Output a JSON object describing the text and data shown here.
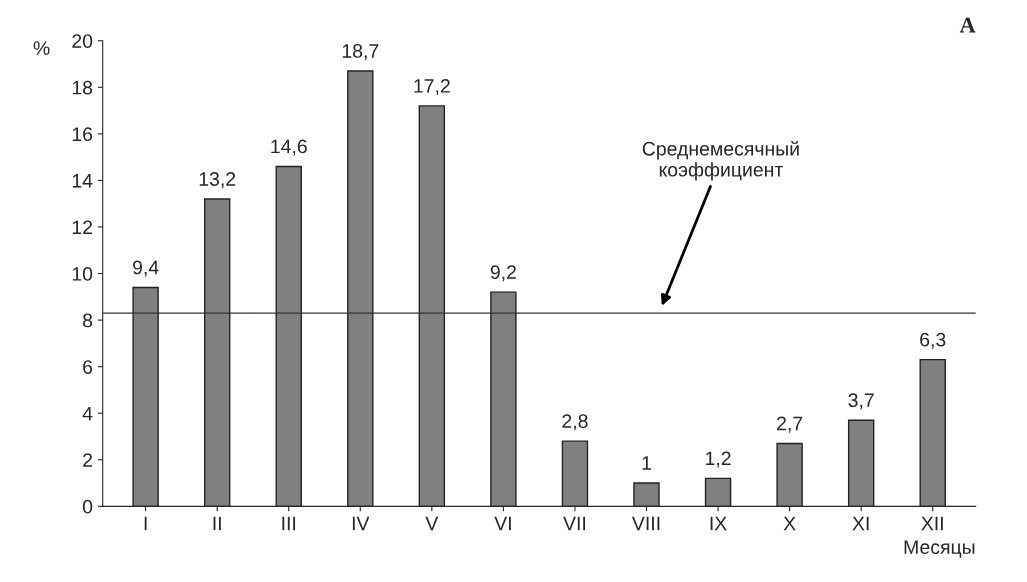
{
  "chart_data": {
    "type": "bar",
    "title": "A",
    "ylabel": "%",
    "xlabel": "Месяцы",
    "categories": [
      "I",
      "II",
      "III",
      "IV",
      "V",
      "VI",
      "VII",
      "VIII",
      "IX",
      "X",
      "XI",
      "XII"
    ],
    "values": [
      9.4,
      13.2,
      14.6,
      18.7,
      17.2,
      9.2,
      2.8,
      1,
      1.2,
      2.7,
      3.7,
      6.3
    ],
    "value_labels": [
      "9,4",
      "13,2",
      "14,6",
      "18,7",
      "17,2",
      "9,2",
      "2,8",
      "1",
      "1,2",
      "2,7",
      "3,7",
      "6,3"
    ],
    "color": "#808080",
    "ylim": [
      0,
      20
    ],
    "yticks": [
      0,
      2,
      4,
      6,
      8,
      10,
      12,
      14,
      16,
      18,
      20
    ],
    "ref_lines": [
      {
        "axis": "y",
        "value": 8.3,
        "label": "Среднемесячный\nкоэффициент",
        "color": "#333333",
        "line_style": "solid"
      }
    ],
    "grid": false,
    "legend": false
  }
}
